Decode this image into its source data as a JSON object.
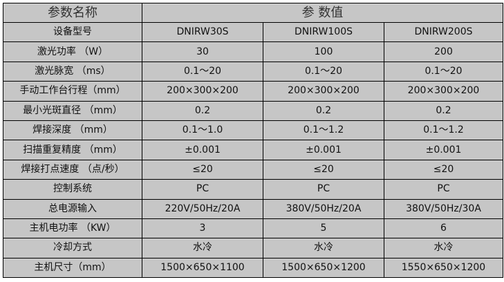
{
  "header": {
    "param_name": "参数名称",
    "param_value": "参 数值"
  },
  "rows": [
    {
      "label": "设备型号",
      "values": [
        "DNIRW30S",
        "DNIRW100S",
        "DNIRW200S"
      ]
    },
    {
      "label": "激光功率 （W）",
      "values": [
        "30",
        "100",
        "200"
      ]
    },
    {
      "label": "激光脉宽 （ms）",
      "values": [
        "0.1～20",
        "0.1～20",
        "0.1～20"
      ]
    },
    {
      "label": "手动工作台行程（mm）",
      "values": [
        "200×300×200",
        "200×300×200",
        "200×300×200"
      ]
    },
    {
      "label": "最小光斑直径 （mm）",
      "values": [
        "0.2",
        "0.2",
        "0.2"
      ]
    },
    {
      "label": "焊接深度 （mm）",
      "values": [
        "0.1～1.0",
        "0.1～1.2",
        "0.1～1.2"
      ]
    },
    {
      "label": "扫描重复精度 （mm）",
      "values": [
        "±0.001",
        "±0.001",
        "±0.001"
      ]
    },
    {
      "label": "焊接打点速度 （点/秒）",
      "values": [
        "≤20",
        "≤20",
        "≤20"
      ]
    },
    {
      "label": "控制系统",
      "values": [
        "PC",
        "PC",
        "PC"
      ]
    },
    {
      "label": "总电源输入",
      "values": [
        "220V/50Hz/20A",
        "380V/50Hz/20A",
        "380V/50Hz/30A"
      ]
    },
    {
      "label": "主机电功率 （KW）",
      "values": [
        "3",
        "5",
        "6"
      ]
    },
    {
      "label": "冷却方式",
      "values": [
        "水冷",
        "水冷",
        "水冷"
      ]
    },
    {
      "label": "主机尺寸（mm）",
      "values": [
        "1500×650×1100",
        "1500×650×1200",
        "1550×650×1200"
      ]
    }
  ]
}
